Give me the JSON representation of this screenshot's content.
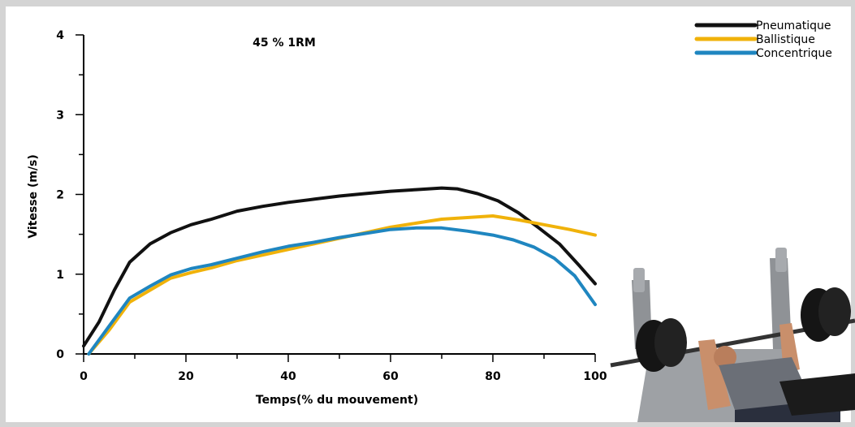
{
  "chart_data": {
    "type": "line",
    "title": "45 % 1RM",
    "xlabel": "Temps(% du mouvement)",
    "ylabel": "Vitesse (m/s)",
    "xlim": [
      0,
      100
    ],
    "ylim": [
      0,
      4
    ],
    "x_ticks": [
      0,
      20,
      40,
      60,
      80,
      100
    ],
    "y_ticks": [
      0,
      1,
      2,
      3,
      4
    ],
    "legend_position": "top-right",
    "grid": false,
    "series": [
      {
        "name": "Pneumatique",
        "color": "#111111",
        "x": [
          0,
          3,
          6,
          9,
          13,
          17,
          21,
          25,
          30,
          35,
          40,
          45,
          50,
          55,
          60,
          65,
          70,
          73,
          77,
          81,
          85,
          89,
          93,
          97,
          100
        ],
        "y": [
          0.1,
          0.4,
          0.8,
          1.15,
          1.38,
          1.52,
          1.62,
          1.69,
          1.79,
          1.85,
          1.9,
          1.94,
          1.98,
          2.01,
          2.04,
          2.06,
          2.08,
          2.07,
          2.01,
          1.92,
          1.77,
          1.58,
          1.38,
          1.1,
          0.88
        ]
      },
      {
        "name": "Ballistique",
        "color": "#f0b20a",
        "x": [
          1,
          5,
          9,
          13,
          17,
          21,
          25,
          30,
          35,
          40,
          45,
          50,
          55,
          60,
          65,
          70,
          75,
          80,
          85,
          90,
          95,
          100
        ],
        "y": [
          0.0,
          0.3,
          0.65,
          0.8,
          0.95,
          1.02,
          1.08,
          1.17,
          1.24,
          1.31,
          1.38,
          1.45,
          1.52,
          1.59,
          1.64,
          1.69,
          1.71,
          1.73,
          1.68,
          1.62,
          1.56,
          1.49
        ]
      },
      {
        "name": "Concentrique",
        "color": "#1f86c0",
        "x": [
          1,
          5,
          9,
          13,
          17,
          21,
          25,
          30,
          35,
          40,
          45,
          50,
          55,
          60,
          65,
          70,
          75,
          80,
          84,
          88,
          92,
          96,
          100
        ],
        "y": [
          0.0,
          0.35,
          0.7,
          0.85,
          0.99,
          1.07,
          1.12,
          1.2,
          1.28,
          1.35,
          1.4,
          1.46,
          1.51,
          1.56,
          1.58,
          1.58,
          1.54,
          1.49,
          1.43,
          1.34,
          1.2,
          0.98,
          0.62
        ]
      }
    ]
  },
  "illustration": {
    "icon": "bench-press-athlete-icon"
  }
}
